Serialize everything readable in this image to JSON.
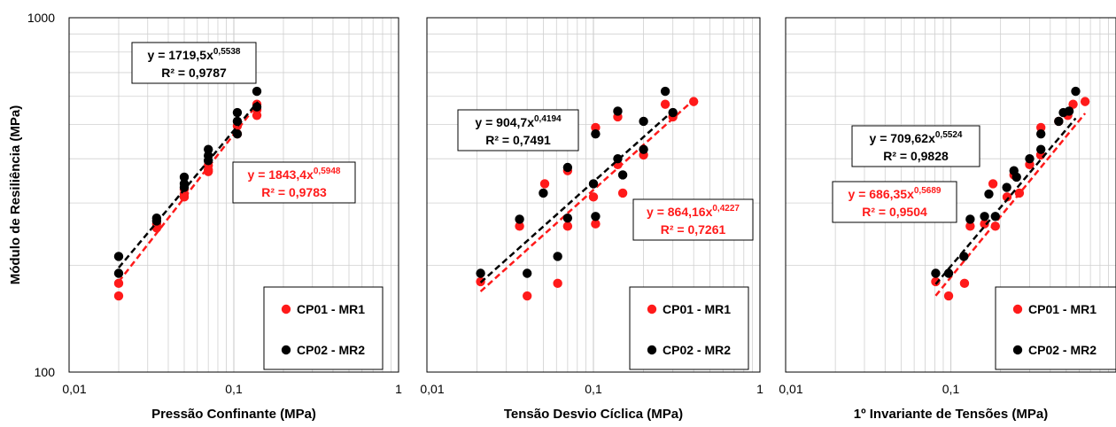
{
  "y_axis": {
    "label": "Módulo de Resiliência (MPa)",
    "ticks": [
      "100",
      "1000"
    ],
    "lim": [
      100,
      1000
    ],
    "scale": "log"
  },
  "legend_labels": {
    "s1": "CP01 - MR1",
    "s2": "CP02 - MR2"
  },
  "colors": {
    "s1": "#ff1a1a",
    "s2": "#000000",
    "grid": "#d0d0d0",
    "frame": "#000000"
  },
  "chart_data": [
    {
      "type": "scatter",
      "xlabel": "Pressão Confinante (MPa)",
      "xscale": "log",
      "xlim": [
        0.01,
        1
      ],
      "ylim": [
        100,
        1000
      ],
      "xticks": [
        "0,01",
        "0,1",
        "1"
      ],
      "grid": true,
      "legend_position": "bottom-right",
      "series": [
        {
          "name": "CP01 - MR1",
          "color": "#ff1a1a",
          "points": [
            [
              0.02,
              164
            ],
            [
              0.02,
              178
            ],
            [
              0.034,
              255
            ],
            [
              0.034,
              262
            ],
            [
              0.05,
              312
            ],
            [
              0.05,
              318
            ],
            [
              0.05,
              328
            ],
            [
              0.07,
              368
            ],
            [
              0.07,
              372
            ],
            [
              0.07,
              383
            ],
            [
              0.105,
              470
            ],
            [
              0.105,
              495
            ],
            [
              0.138,
              530
            ],
            [
              0.138,
              550
            ],
            [
              0.138,
              570
            ]
          ],
          "fit": {
            "a": 1843.4,
            "b": 0.5948,
            "range": [
              0.02,
              0.14
            ]
          },
          "eq": {
            "coef": "y = 1843,4x",
            "exp": "0,5948",
            "r2": "R² = 0,9783"
          }
        },
        {
          "name": "CP02 - MR2",
          "color": "#000000",
          "points": [
            [
              0.02,
              190
            ],
            [
              0.02,
              212
            ],
            [
              0.034,
              267
            ],
            [
              0.034,
              272
            ],
            [
              0.05,
              332
            ],
            [
              0.05,
              340
            ],
            [
              0.05,
              355
            ],
            [
              0.07,
              395
            ],
            [
              0.07,
              408
            ],
            [
              0.07,
              425
            ],
            [
              0.105,
              470
            ],
            [
              0.105,
              510
            ],
            [
              0.105,
              540
            ],
            [
              0.138,
              560
            ],
            [
              0.138,
              620
            ]
          ],
          "fit": {
            "a": 1719.5,
            "b": 0.5538,
            "range": [
              0.02,
              0.14
            ]
          },
          "eq": {
            "coef": "y = 1719,5x",
            "exp": "0,5538",
            "r2": "R² = 0,9787"
          }
        }
      ]
    },
    {
      "type": "scatter",
      "xlabel": "Tensão Desvio Cíclica (MPa)",
      "xscale": "log",
      "xlim": [
        0.01,
        1
      ],
      "ylim": [
        100,
        1000
      ],
      "xticks": [
        "0,01",
        "0,1",
        "1"
      ],
      "grid": true,
      "legend_position": "bottom-right",
      "series": [
        {
          "name": "CP01 - MR1",
          "color": "#ff1a1a",
          "points": [
            [
              0.021,
              180
            ],
            [
              0.036,
              258
            ],
            [
              0.04,
              164
            ],
            [
              0.051,
              340
            ],
            [
              0.061,
              178
            ],
            [
              0.07,
              258
            ],
            [
              0.07,
              370
            ],
            [
              0.1,
              312
            ],
            [
              0.103,
              262
            ],
            [
              0.103,
              490
            ],
            [
              0.14,
              385
            ],
            [
              0.14,
              525
            ],
            [
              0.15,
              320
            ],
            [
              0.2,
              410
            ],
            [
              0.27,
              570
            ],
            [
              0.3,
              525
            ],
            [
              0.4,
              580
            ]
          ],
          "fit": {
            "a": 864.16,
            "b": 0.4227,
            "range": [
              0.021,
              0.4
            ]
          },
          "eq": {
            "coef": "y = 864,16x",
            "exp": "0,4227",
            "r2": "R² = 0,7261"
          }
        },
        {
          "name": "CP02 - MR2",
          "color": "#000000",
          "points": [
            [
              0.021,
              190
            ],
            [
              0.036,
              270
            ],
            [
              0.04,
              190
            ],
            [
              0.05,
              320
            ],
            [
              0.061,
              212
            ],
            [
              0.07,
              272
            ],
            [
              0.07,
              378
            ],
            [
              0.1,
              340
            ],
            [
              0.103,
              275
            ],
            [
              0.103,
              470
            ],
            [
              0.14,
              400
            ],
            [
              0.14,
              545
            ],
            [
              0.15,
              360
            ],
            [
              0.2,
              425
            ],
            [
              0.2,
              510
            ],
            [
              0.27,
              620
            ],
            [
              0.3,
              540
            ]
          ],
          "fit": {
            "a": 904.7,
            "b": 0.4194,
            "range": [
              0.021,
              0.3
            ]
          },
          "eq": {
            "coef": "y = 904,7x",
            "exp": "0,4194",
            "r2": "R² = 0,7491"
          }
        }
      ]
    },
    {
      "type": "scatter",
      "xlabel": "1º Invariante de Tensões (MPa)",
      "xscale": "log",
      "xlim": [
        0.01,
        1
      ],
      "ylim": [
        100,
        1000
      ],
      "xticks": [
        "0,01",
        "0,1"
      ],
      "grid": true,
      "legend_position": "bottom-right",
      "series": [
        {
          "name": "CP01 - MR1",
          "color": "#ff1a1a",
          "points": [
            [
              0.081,
              180
            ],
            [
              0.097,
              164
            ],
            [
              0.121,
              178
            ],
            [
              0.131,
              258
            ],
            [
              0.16,
              262
            ],
            [
              0.18,
              340
            ],
            [
              0.186,
              258
            ],
            [
              0.219,
              312
            ],
            [
              0.241,
              360
            ],
            [
              0.26,
              320
            ],
            [
              0.3,
              385
            ],
            [
              0.35,
              410
            ],
            [
              0.351,
              490
            ],
            [
              0.45,
              510
            ],
            [
              0.511,
              530
            ],
            [
              0.55,
              570
            ],
            [
              0.65,
              580
            ]
          ],
          "fit": {
            "a": 686.35,
            "b": 0.5689,
            "range": [
              0.081,
              0.65
            ]
          },
          "eq": {
            "coef": "y = 686,35x",
            "exp": "0,5689",
            "r2": "R² = 0,9504"
          }
        },
        {
          "name": "CP02 - MR2",
          "color": "#000000",
          "points": [
            [
              0.081,
              190
            ],
            [
              0.097,
              190
            ],
            [
              0.12,
              212
            ],
            [
              0.131,
              270
            ],
            [
              0.16,
              275
            ],
            [
              0.17,
              318
            ],
            [
              0.186,
              275
            ],
            [
              0.218,
              332
            ],
            [
              0.241,
              370
            ],
            [
              0.25,
              355
            ],
            [
              0.3,
              400
            ],
            [
              0.351,
              425
            ],
            [
              0.351,
              470
            ],
            [
              0.45,
              510
            ],
            [
              0.48,
              540
            ],
            [
              0.52,
              545
            ],
            [
              0.57,
              620
            ]
          ],
          "fit": {
            "a": 709.62,
            "b": 0.5524,
            "range": [
              0.081,
              0.57
            ]
          },
          "eq": {
            "coef": "y = 709,62x",
            "exp": "0,5524",
            "r2": "R² = 0,9828"
          }
        }
      ]
    }
  ]
}
